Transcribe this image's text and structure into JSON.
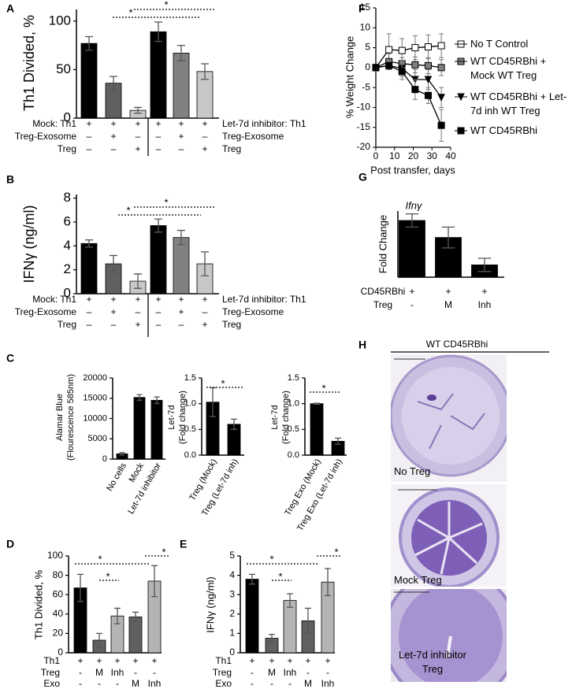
{
  "chart_data": [
    {
      "type": "bar",
      "panel": "A",
      "ylabel": "Th1 Divided, %",
      "ylim": [
        0,
        112
      ],
      "yticks": [
        0,
        50,
        100
      ],
      "values": [
        77,
        36,
        8,
        89,
        67,
        48
      ],
      "errors": [
        7,
        7,
        3,
        10,
        8,
        8
      ],
      "colors": [
        "#000000",
        "#606060",
        "#c8c8c8",
        "#000000",
        "#808080",
        "#c8c8c8"
      ],
      "conditions": {
        "labels": [
          "Mock: Th1",
          "Treg-Exosome",
          "Treg"
        ],
        "right_labels": [
          "Let-7d inhibitor: Th1",
          "Treg-Exosome",
          "Treg"
        ],
        "rows": [
          [
            "+",
            "+",
            "+",
            "+",
            "+",
            "+"
          ],
          [
            "–",
            "+",
            "–",
            "–",
            "+",
            "–"
          ],
          [
            "–",
            "–",
            "+",
            "–",
            "–",
            "+"
          ]
        ]
      },
      "significance": [
        "*",
        "*"
      ]
    },
    {
      "type": "bar",
      "panel": "B",
      "ylabel": "IFNγ (ng/ml)",
      "ylim": [
        0,
        8.3
      ],
      "yticks": [
        0,
        2,
        4,
        6,
        8
      ],
      "values": [
        4.2,
        2.5,
        1.05,
        5.7,
        4.7,
        2.5
      ],
      "errors": [
        0.3,
        0.7,
        0.6,
        0.55,
        0.6,
        1.0
      ],
      "colors": [
        "#000000",
        "#606060",
        "#c8c8c8",
        "#000000",
        "#808080",
        "#c8c8c8"
      ],
      "conditions": {
        "labels": [
          "Mock: Th1",
          "Treg-Exosome",
          "Treg"
        ],
        "right_labels": [
          "Let-7d inhibitor: Th1",
          "Treg-Exosome",
          "Treg"
        ],
        "rows": [
          [
            "+",
            "+",
            "+",
            "+",
            "+",
            "+"
          ],
          [
            "–",
            "+",
            "–",
            "–",
            "+",
            "–"
          ],
          [
            "–",
            "–",
            "+",
            "–",
            "–",
            "+"
          ]
        ]
      },
      "significance": [
        "*",
        "*"
      ]
    },
    {
      "type": "bar",
      "panel": "C",
      "ylabel": [
        "Alamar Blue",
        "(Flourescence 585nm)"
      ],
      "ylim": [
        0,
        20000
      ],
      "yticks": [
        0,
        5000,
        10000,
        15000,
        20000
      ],
      "categories": [
        "No cells",
        "Mock",
        "Let-7d inhibitor"
      ],
      "values": [
        1300,
        15200,
        14500
      ],
      "errors": [
        300,
        700,
        800
      ],
      "colors": [
        "#000000",
        "#000000",
        "#000000"
      ]
    },
    {
      "type": "bar",
      "ylabel": [
        "Let-7d",
        "(Fold change)"
      ],
      "ylim": [
        0,
        1.5
      ],
      "yticks": [
        {
          "value": 0,
          "label": "0.0"
        },
        {
          "value": 0.5,
          "label": "0.5"
        },
        {
          "value": 1,
          "label": "1.0"
        },
        {
          "value": 1.5,
          "label": "1.5"
        }
      ],
      "categories": [
        "Treg (Mock)",
        "Treg (Let-7d inh)"
      ],
      "values": [
        1.03,
        0.6
      ],
      "errors": [
        0.28,
        0.1
      ],
      "colors": [
        "#000000",
        "#000000"
      ],
      "significance": [
        "*"
      ]
    },
    {
      "type": "bar",
      "ylabel": [
        "Let-7d",
        "(Fold change)"
      ],
      "ylim": [
        0,
        1.5
      ],
      "yticks": [
        {
          "value": 0,
          "label": "0.0"
        },
        {
          "value": 0.5,
          "label": "0.5"
        },
        {
          "value": 1,
          "label": "1.0"
        },
        {
          "value": 1.5,
          "label": "1.5"
        }
      ],
      "categories": [
        "Treg Exo (Mock)",
        "Treg Exo (Let-7d inh)"
      ],
      "values": [
        1.0,
        0.27
      ],
      "errors": [
        0.01,
        0.06
      ],
      "colors": [
        "#000000",
        "#000000"
      ],
      "significance": [
        "*"
      ]
    },
    {
      "type": "bar",
      "panel": "D",
      "ylabel": "Th1 Divided, %",
      "ylim": [
        0,
        100
      ],
      "yticks": [
        0,
        20,
        40,
        60,
        80,
        100
      ],
      "values": [
        67,
        13,
        38,
        37,
        74
      ],
      "errors": [
        14,
        7,
        8,
        5,
        16
      ],
      "colors": [
        "#000000",
        "#606060",
        "#b4b4b4",
        "#606060",
        "#b4b4b4"
      ],
      "conditions": {
        "labels": [
          "Th1",
          "Treg",
          "Exo"
        ],
        "rows": [
          [
            "+",
            "+",
            "+",
            "+",
            "+"
          ],
          [
            "-",
            "M",
            "Inh",
            "-",
            "-"
          ],
          [
            "-",
            "-",
            "-",
            "M",
            "Inh"
          ]
        ]
      },
      "significance": [
        "*",
        "*",
        "*"
      ]
    },
    {
      "type": "bar",
      "panel": "E",
      "ylabel": "IFNγ (ng/ml)",
      "ylim": [
        0,
        5
      ],
      "yticks": [
        0,
        1,
        2,
        3,
        4,
        5
      ],
      "values": [
        3.8,
        0.75,
        2.7,
        1.65,
        3.65
      ],
      "errors": [
        0.25,
        0.2,
        0.35,
        0.65,
        0.7
      ],
      "colors": [
        "#000000",
        "#606060",
        "#b4b4b4",
        "#606060",
        "#b4b4b4"
      ],
      "conditions": {
        "labels": [
          "Th1",
          "Treg",
          "Exo"
        ],
        "rows": [
          [
            "+",
            "+",
            "+",
            "+",
            "+"
          ],
          [
            "-",
            "M",
            "Inh",
            "-",
            "-"
          ],
          [
            "-",
            "-",
            "-",
            "M",
            "Inh"
          ]
        ]
      },
      "significance": [
        "*",
        "*",
        "*"
      ]
    },
    {
      "type": "line",
      "panel": "F",
      "ylabel": "% Weight Change",
      "xlabel": "Post transfer, days",
      "xlim": [
        0,
        40
      ],
      "xticks": [
        0,
        10,
        20,
        30,
        40
      ],
      "ylim": [
        -20,
        15
      ],
      "yticks": [
        -20,
        -15,
        -10,
        -5,
        0,
        5,
        10,
        15
      ],
      "x": [
        0,
        7,
        14,
        21,
        28,
        35
      ],
      "series": [
        {
          "name": "No T Control",
          "color": "#ffffff",
          "marker": "square",
          "values": [
            0,
            4.5,
            4.3,
            5,
            5.2,
            5.5
          ],
          "errors": [
            0,
            4,
            3,
            3,
            3,
            3
          ]
        },
        {
          "name": "WT CD45RBhi + Mock WT Treg",
          "color": "#808080",
          "marker": "square",
          "values": [
            0,
            1.5,
            1,
            0.7,
            0.5,
            0
          ],
          "errors": [
            0,
            2,
            1.5,
            2,
            2,
            2
          ]
        },
        {
          "name": "WT CD45RBhi + Let-7d inh WT Treg",
          "color": "#000000",
          "marker": "triangle-down",
          "values": [
            0,
            0.5,
            -0.2,
            -3,
            -3,
            -7.5
          ],
          "errors": [
            0,
            1,
            2,
            2.5,
            2.5,
            2.5
          ]
        },
        {
          "name": "WT CD45RBhi",
          "color": "#000000",
          "marker": "square",
          "values": [
            0,
            0.5,
            -1,
            -5.5,
            -7,
            -14.5
          ],
          "errors": [
            0,
            1,
            2,
            2.5,
            2,
            4
          ]
        }
      ]
    },
    {
      "type": "bar",
      "panel": "G",
      "title": "Ifnγ",
      "ylabel": "Fold Change",
      "ylim": [
        0,
        3.5
      ],
      "values": [
        3.0,
        2.1,
        0.65
      ],
      "errors": [
        0.35,
        0.55,
        0.35
      ],
      "colors": [
        "#000000",
        "#000000",
        "#000000"
      ],
      "conditions": {
        "labels": [
          "CD45RBhi",
          "Treg"
        ],
        "rows": [
          [
            "+",
            "+",
            "+"
          ],
          [
            "-",
            "M",
            "Inh"
          ]
        ]
      }
    }
  ],
  "histology": {
    "panel": "H",
    "title": "WT CD45RBhi",
    "images": [
      "No Treg",
      "Mock Treg",
      "Let-7d inhibitor Treg"
    ]
  }
}
